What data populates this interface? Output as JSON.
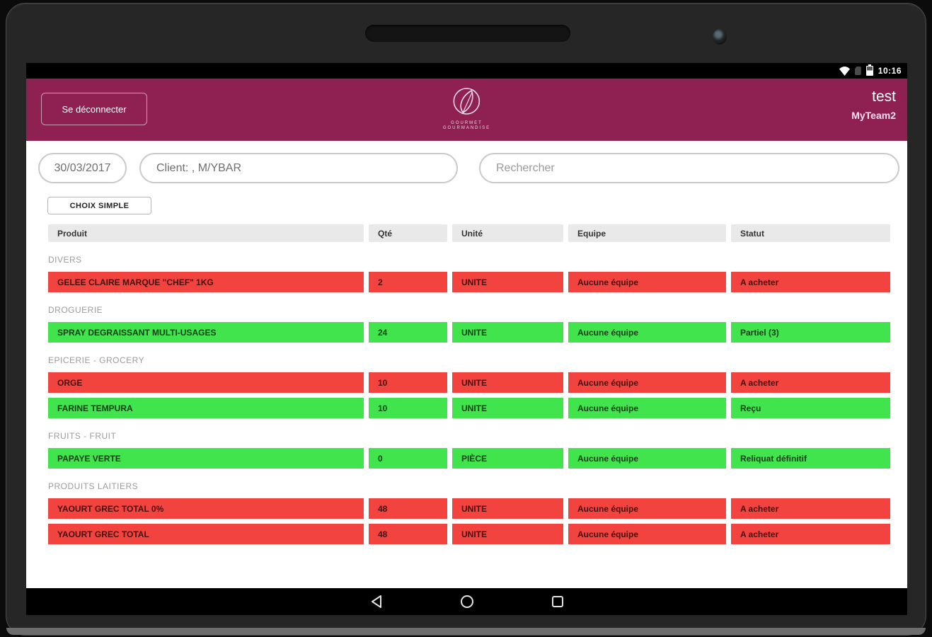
{
  "status_bar": {
    "time": "10:16"
  },
  "app_header": {
    "logout_label": "Se déconnecter",
    "logo_line1": "GOURMET",
    "logo_line2": "GOURMANDISE",
    "user_name": "test",
    "team_name": "MyTeam2"
  },
  "filters": {
    "date_value": "30/03/2017",
    "client_value": "Client: , M/YBAR",
    "search_placeholder": "Rechercher",
    "choice_button_label": "CHOIX SIMPLE"
  },
  "table": {
    "columns": [
      "Produit",
      "Qté",
      "Unité",
      "Equipe",
      "Statut"
    ],
    "sections": [
      {
        "name": "DIVERS",
        "rows": [
          {
            "product": "GELEE CLAIRE MARQUE \"CHEF\" 1KG",
            "qty": "2",
            "unit": "UNITE",
            "team": "Aucune équipe",
            "status": "A acheter",
            "color": "red"
          }
        ]
      },
      {
        "name": "DROGUERIE",
        "rows": [
          {
            "product": "SPRAY DEGRAISSANT MULTI-USAGES",
            "qty": "24",
            "unit": "UNITE",
            "team": "Aucune équipe",
            "status": "Partiel (3)",
            "color": "green"
          }
        ]
      },
      {
        "name": "EPICERIE - GROCERY",
        "rows": [
          {
            "product": "ORGE",
            "qty": "10",
            "unit": "UNITE",
            "team": "Aucune équipe",
            "status": "A acheter",
            "color": "red"
          },
          {
            "product": "FARINE TEMPURA",
            "qty": "10",
            "unit": "UNITE",
            "team": "Aucune équipe",
            "status": "Reçu",
            "color": "green"
          }
        ]
      },
      {
        "name": "FRUITS - FRUIT",
        "rows": [
          {
            "product": "PAPAYE VERTE",
            "qty": "0",
            "unit": "PIÈCE",
            "team": "Aucune équipe",
            "status": "Reliquat définitif",
            "color": "green"
          }
        ]
      },
      {
        "name": "PRODUITS LAITIERS",
        "rows": [
          {
            "product": "YAOURT GREC TOTAL 0%",
            "qty": "48",
            "unit": "UNITE",
            "team": "Aucune équipe",
            "status": "A acheter",
            "color": "red"
          },
          {
            "product": "YAOURT GREC TOTAL",
            "qty": "48",
            "unit": "UNITE",
            "team": "Aucune équipe",
            "status": "A acheter",
            "color": "red"
          }
        ]
      }
    ]
  },
  "colors": {
    "header": "#8e2151",
    "row_red": "#f2433e",
    "row_green": "#41e44d",
    "head_cell": "#e9e9e9"
  }
}
